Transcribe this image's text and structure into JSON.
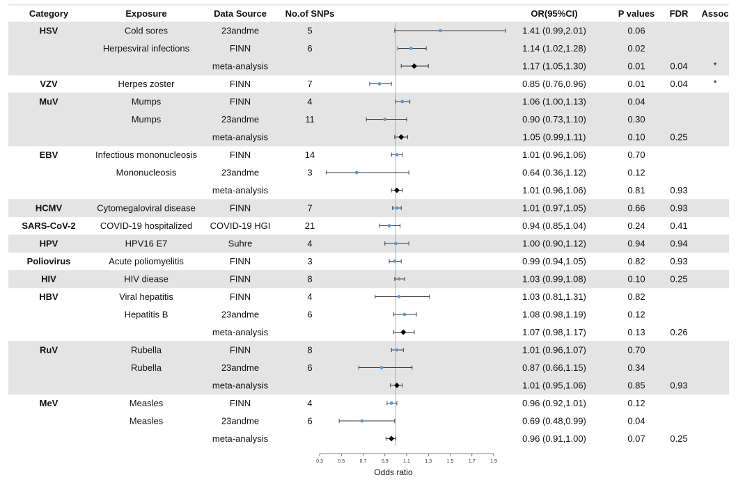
{
  "headers": {
    "category": "Category",
    "exposure": "Exposure",
    "source": "Data Source",
    "snps": "No.of SNPs",
    "or": "OR(95%CI)",
    "p": "P values",
    "fdr": "FDR",
    "assoc": "Assoc"
  },
  "chart_data": {
    "type": "forest",
    "xlabel": "Odds ratio",
    "xlim": [
      0.3,
      1.9
    ],
    "xticks": [
      "0.3",
      "0.5",
      "0.7",
      "0.9",
      "1.1",
      "1.3",
      "1.5",
      "1.7",
      "1.9"
    ],
    "reference_line": 1,
    "colors": {
      "study": "#5b9bd5",
      "meta": "#000000",
      "shade": "#e4e4e4",
      "ci": "#333333"
    },
    "rows": [
      {
        "category": "HSV",
        "exposure": "Cold sores",
        "source": "23andme",
        "snps": "5",
        "or": 1.41,
        "lo": 0.99,
        "hi": 2.01,
        "or_text": "1.41 (0.99,2.01)",
        "p": "0.06",
        "fdr": "",
        "assoc": "",
        "meta": false,
        "shade": true
      },
      {
        "category": "",
        "exposure": "Herpesviral infections",
        "source": "FINN",
        "snps": "6",
        "or": 1.14,
        "lo": 1.02,
        "hi": 1.28,
        "or_text": "1.14 (1.02,1.28)",
        "p": "0.02",
        "fdr": "",
        "assoc": "",
        "meta": false,
        "shade": true
      },
      {
        "category": "",
        "exposure": "",
        "source": "meta-analysis",
        "snps": "",
        "or": 1.17,
        "lo": 1.05,
        "hi": 1.3,
        "or_text": "1.17 (1.05,1.30)",
        "p": "0.01",
        "fdr": "0.04",
        "assoc": "*",
        "meta": true,
        "shade": true
      },
      {
        "category": "VZV",
        "exposure": "Herpes zoster",
        "source": "FINN",
        "snps": "7",
        "or": 0.85,
        "lo": 0.76,
        "hi": 0.96,
        "or_text": "0.85 (0.76,0.96)",
        "p": "0.01",
        "fdr": "0.04",
        "assoc": "*",
        "meta": false,
        "shade": false
      },
      {
        "category": "MuV",
        "exposure": "Mumps",
        "source": "FINN",
        "snps": "4",
        "or": 1.06,
        "lo": 1.0,
        "hi": 1.13,
        "or_text": "1.06 (1.00,1.13)",
        "p": "0.04",
        "fdr": "",
        "assoc": "",
        "meta": false,
        "shade": true
      },
      {
        "category": "",
        "exposure": "Mumps",
        "source": "23andme",
        "snps": "11",
        "or": 0.9,
        "lo": 0.73,
        "hi": 1.1,
        "or_text": "0.90 (0.73,1.10)",
        "p": "0.30",
        "fdr": "",
        "assoc": "",
        "meta": false,
        "shade": true
      },
      {
        "category": "",
        "exposure": "",
        "source": "meta-analysis",
        "snps": "",
        "or": 1.05,
        "lo": 0.99,
        "hi": 1.11,
        "or_text": "1.05 (0.99,1.11)",
        "p": "0.10",
        "fdr": "0.25",
        "assoc": "",
        "meta": true,
        "shade": true
      },
      {
        "category": "EBV",
        "exposure": "Infectious mononucleosis",
        "source": "FINN",
        "snps": "14",
        "or": 1.01,
        "lo": 0.96,
        "hi": 1.06,
        "or_text": "1.01 (0.96,1.06)",
        "p": "0.70",
        "fdr": "",
        "assoc": "",
        "meta": false,
        "shade": false
      },
      {
        "category": "",
        "exposure": "Mononucleosis",
        "source": "23andme",
        "snps": "3",
        "or": 0.64,
        "lo": 0.36,
        "hi": 1.12,
        "or_text": "0.64 (0.36,1.12)",
        "p": "0.12",
        "fdr": "",
        "assoc": "",
        "meta": false,
        "shade": false
      },
      {
        "category": "",
        "exposure": "",
        "source": "meta-analysis",
        "snps": "",
        "or": 1.01,
        "lo": 0.96,
        "hi": 1.06,
        "or_text": "1.01 (0.96,1.06)",
        "p": "0.81",
        "fdr": "0.93",
        "assoc": "",
        "meta": true,
        "shade": false
      },
      {
        "category": "HCMV",
        "exposure": "Cytomegaloviral disease",
        "source": "FINN",
        "snps": "7",
        "or": 1.01,
        "lo": 0.97,
        "hi": 1.05,
        "or_text": "1.01 (0.97,1.05)",
        "p": "0.66",
        "fdr": "0.93",
        "assoc": "",
        "meta": false,
        "shade": true
      },
      {
        "category": "SARS-CoV-2",
        "exposure": "COVID-19 hospitalized",
        "source": "COVID-19 HGI",
        "snps": "21",
        "or": 0.94,
        "lo": 0.85,
        "hi": 1.04,
        "or_text": "0.94 (0.85,1.04)",
        "p": "0.24",
        "fdr": "0.41",
        "assoc": "",
        "meta": false,
        "shade": false
      },
      {
        "category": "HPV",
        "exposure": "HPV16 E7",
        "source": "Suhre",
        "snps": "4",
        "or": 1.0,
        "lo": 0.9,
        "hi": 1.12,
        "or_text": "1.00 (0.90,1.12)",
        "p": "0.94",
        "fdr": "0.94",
        "assoc": "",
        "meta": false,
        "shade": true
      },
      {
        "category": "Poliovirus",
        "exposure": "Acute poliomyelitis",
        "source": "FINN",
        "snps": "3",
        "or": 0.99,
        "lo": 0.94,
        "hi": 1.05,
        "or_text": "0.99 (0.94,1.05)",
        "p": "0.82",
        "fdr": "0.93",
        "assoc": "",
        "meta": false,
        "shade": false
      },
      {
        "category": "HIV",
        "exposure": "HIV diease",
        "source": "FINN",
        "snps": "8",
        "or": 1.03,
        "lo": 0.99,
        "hi": 1.08,
        "or_text": "1.03 (0.99,1.08)",
        "p": "0.10",
        "fdr": "0.25",
        "assoc": "",
        "meta": false,
        "shade": true
      },
      {
        "category": "HBV",
        "exposure": "Viral hepatitis",
        "source": "FINN",
        "snps": "4",
        "or": 1.03,
        "lo": 0.81,
        "hi": 1.31,
        "or_text": "1.03 (0.81,1.31)",
        "p": "0.82",
        "fdr": "",
        "assoc": "",
        "meta": false,
        "shade": false
      },
      {
        "category": "",
        "exposure": "Hepatitis B",
        "source": "23andme",
        "snps": "6",
        "or": 1.08,
        "lo": 0.98,
        "hi": 1.19,
        "or_text": "1.08 (0.98,1.19)",
        "p": "0.12",
        "fdr": "",
        "assoc": "",
        "meta": false,
        "shade": false
      },
      {
        "category": "",
        "exposure": "",
        "source": "meta-analysis",
        "snps": "",
        "or": 1.07,
        "lo": 0.98,
        "hi": 1.17,
        "or_text": "1.07 (0.98,1.17)",
        "p": "0.13",
        "fdr": "0.26",
        "assoc": "",
        "meta": true,
        "shade": false
      },
      {
        "category": "RuV",
        "exposure": "Rubella",
        "source": "FINN",
        "snps": "8",
        "or": 1.01,
        "lo": 0.96,
        "hi": 1.07,
        "or_text": "1.01 (0.96,1.07)",
        "p": "0.70",
        "fdr": "",
        "assoc": "",
        "meta": false,
        "shade": true
      },
      {
        "category": "",
        "exposure": "Rubella",
        "source": "23andme",
        "snps": "6",
        "or": 0.87,
        "lo": 0.66,
        "hi": 1.15,
        "or_text": "0.87 (0.66,1.15)",
        "p": "0.34",
        "fdr": "",
        "assoc": "",
        "meta": false,
        "shade": true
      },
      {
        "category": "",
        "exposure": "",
        "source": "meta-analysis",
        "snps": "",
        "or": 1.01,
        "lo": 0.95,
        "hi": 1.06,
        "or_text": "1.01 (0.95,1.06)",
        "p": "0.85",
        "fdr": "0.93",
        "assoc": "",
        "meta": true,
        "shade": true
      },
      {
        "category": "MeV",
        "exposure": "Measles",
        "source": "FINN",
        "snps": "4",
        "or": 0.96,
        "lo": 0.92,
        "hi": 1.01,
        "or_text": "0.96 (0.92,1.01)",
        "p": "0.12",
        "fdr": "",
        "assoc": "",
        "meta": false,
        "shade": false
      },
      {
        "category": "",
        "exposure": "Measles",
        "source": "23andme",
        "snps": "6",
        "or": 0.69,
        "lo": 0.48,
        "hi": 0.99,
        "or_text": "0.69 (0.48,0.99)",
        "p": "0.04",
        "fdr": "",
        "assoc": "",
        "meta": false,
        "shade": false
      },
      {
        "category": "",
        "exposure": "",
        "source": "meta-analysis",
        "snps": "",
        "or": 0.96,
        "lo": 0.91,
        "hi": 1.0,
        "or_text": "0.96 (0.91,1.00)",
        "p": "0.07",
        "fdr": "0.25",
        "assoc": "",
        "meta": true,
        "shade": false
      }
    ]
  }
}
